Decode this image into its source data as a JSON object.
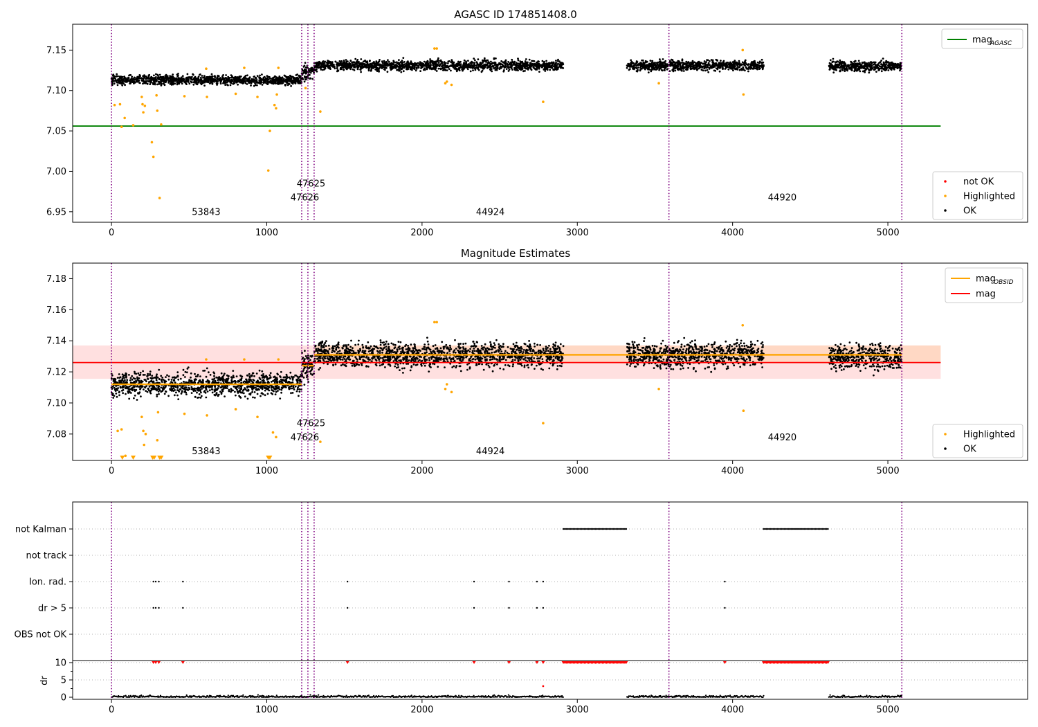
{
  "chart_data": [
    {
      "type": "scatter",
      "title": "AGASC ID 174851408.0",
      "xlim": [
        -250,
        5900
      ],
      "ylim": [
        6.937,
        7.182
      ],
      "xticks": [
        0,
        1000,
        2000,
        3000,
        4000,
        5000
      ],
      "yticks": [
        6.95,
        7.0,
        7.05,
        7.1,
        7.15
      ],
      "ytick_labels": [
        "6.95",
        "7.00",
        "7.05",
        "7.10",
        "7.15"
      ],
      "vlines": [
        0,
        1225,
        1265,
        1305,
        3590,
        5090
      ],
      "hlines": [
        {
          "y": 7.056,
          "x": [
            -250,
            5340
          ],
          "color": "#008000",
          "name": "mag",
          "sub": "AGASC"
        }
      ],
      "obsids": [
        {
          "label": "53843",
          "x": 610,
          "y": 6.946
        },
        {
          "label": "47625",
          "x": 1285,
          "y": 6.981
        },
        {
          "label": "47626",
          "x": 1245,
          "y": 6.964
        },
        {
          "label": "44924",
          "x": 2440,
          "y": 6.946
        },
        {
          "label": "44920",
          "x": 4320,
          "y": 6.964
        }
      ],
      "segments": [
        {
          "x": [
            0,
            1225
          ],
          "y": 7.113,
          "sd": 0.0045
        },
        {
          "x": [
            1225,
            1305
          ],
          "y": 7.122,
          "sd": 0.007
        },
        {
          "x": [
            1305,
            2910
          ],
          "y": 7.131,
          "sd": 0.005
        },
        {
          "x": [
            3320,
            4200
          ],
          "y": 7.131,
          "sd": 0.005
        },
        {
          "x": [
            4620,
            5090
          ],
          "y": 7.13,
          "sd": 0.005
        }
      ],
      "highlighted": [
        [
          20,
          7.082
        ],
        [
          55,
          7.083
        ],
        [
          65,
          7.055
        ],
        [
          85,
          7.066
        ],
        [
          140,
          7.057
        ],
        [
          195,
          7.092
        ],
        [
          200,
          7.083
        ],
        [
          215,
          7.081
        ],
        [
          205,
          7.073
        ],
        [
          260,
          7.036
        ],
        [
          270,
          7.018
        ],
        [
          290,
          7.094
        ],
        [
          295,
          7.075
        ],
        [
          310,
          6.967
        ],
        [
          320,
          7.058
        ],
        [
          470,
          7.093
        ],
        [
          610,
          7.127
        ],
        [
          615,
          7.092
        ],
        [
          800,
          7.096
        ],
        [
          855,
          7.128
        ],
        [
          940,
          7.092
        ],
        [
          1010,
          7.001
        ],
        [
          1020,
          7.05
        ],
        [
          1050,
          7.082
        ],
        [
          1060,
          7.078
        ],
        [
          1065,
          7.095
        ],
        [
          1075,
          7.128
        ],
        [
          1250,
          7.103
        ],
        [
          1345,
          7.074
        ],
        [
          2080,
          7.152
        ],
        [
          2095,
          7.152
        ],
        [
          2150,
          7.109
        ],
        [
          2160,
          7.111
        ],
        [
          2190,
          7.107
        ],
        [
          2780,
          7.086
        ],
        [
          3525,
          7.109
        ],
        [
          4065,
          7.15
        ],
        [
          4070,
          7.095
        ]
      ],
      "legend_right": [
        {
          "label": "mag",
          "sub": "AGASC",
          "color": "#008000",
          "kind": "line"
        }
      ],
      "legend_markers": [
        {
          "label": "not OK",
          "color": "#ff0000"
        },
        {
          "label": "Highlighted",
          "color": "#ffa500"
        },
        {
          "label": "OK",
          "color": "#000000"
        }
      ]
    },
    {
      "type": "scatter",
      "title": "Magnitude Estimates",
      "xlim": [
        -250,
        5900
      ],
      "ylim": [
        7.063,
        7.19
      ],
      "xticks": [
        0,
        1000,
        2000,
        3000,
        4000,
        5000
      ],
      "yticks": [
        7.08,
        7.1,
        7.12,
        7.14,
        7.16,
        7.18
      ],
      "ytick_labels": [
        "7.08",
        "7.10",
        "7.12",
        "7.14",
        "7.16",
        "7.18"
      ],
      "vlines": [
        0,
        1225,
        1265,
        1305,
        3590,
        5090
      ],
      "mag_band": {
        "y": 7.126,
        "lo": 7.1155,
        "hi": 7.137,
        "x": [
          -250,
          5340
        ]
      },
      "obsid_band": {
        "y": 7.131,
        "lo": 7.126,
        "hi": 7.137,
        "x": [
          1305,
          5340
        ]
      },
      "obsid_lines": [
        {
          "x": [
            0,
            1225
          ],
          "y": 7.112
        },
        {
          "x": [
            1225,
            1305
          ],
          "y": 7.124
        },
        {
          "x": [
            1305,
            5090
          ],
          "y": 7.131
        }
      ],
      "obsids": [
        {
          "label": "53843",
          "x": 610,
          "y": 7.067
        },
        {
          "label": "47625",
          "x": 1285,
          "y": 7.085
        },
        {
          "label": "47626",
          "x": 1245,
          "y": 7.076
        },
        {
          "label": "44924",
          "x": 2440,
          "y": 7.067
        },
        {
          "label": "44920",
          "x": 4320,
          "y": 7.076
        }
      ],
      "highlighted": [
        [
          40,
          7.082
        ],
        [
          65,
          7.083
        ],
        [
          90,
          7.066
        ],
        [
          195,
          7.091
        ],
        [
          205,
          7.082
        ],
        [
          220,
          7.08
        ],
        [
          210,
          7.073
        ],
        [
          295,
          7.076
        ],
        [
          300,
          7.094
        ],
        [
          470,
          7.093
        ],
        [
          610,
          7.128
        ],
        [
          615,
          7.092
        ],
        [
          800,
          7.096
        ],
        [
          855,
          7.128
        ],
        [
          940,
          7.091
        ],
        [
          1040,
          7.081
        ],
        [
          1060,
          7.078
        ],
        [
          1075,
          7.128
        ],
        [
          1345,
          7.075
        ],
        [
          2080,
          7.152
        ],
        [
          2095,
          7.152
        ],
        [
          2150,
          7.109
        ],
        [
          2160,
          7.112
        ],
        [
          2190,
          7.107
        ],
        [
          2780,
          7.087
        ],
        [
          3525,
          7.109
        ],
        [
          4065,
          7.15
        ],
        [
          4070,
          7.095
        ]
      ],
      "triangles": [
        70,
        140,
        265,
        275,
        310,
        320,
        1010,
        1020
      ],
      "legend_right": [
        {
          "label": "mag",
          "sub": "OBSID",
          "color": "#ffa500",
          "kind": "line"
        },
        {
          "label": "mag",
          "sub": "",
          "color": "#ff0000",
          "kind": "line"
        }
      ],
      "legend_markers": [
        {
          "label": "Highlighted",
          "color": "#ffa500"
        },
        {
          "label": "OK",
          "color": "#000000"
        }
      ]
    },
    {
      "type": "scatter",
      "title": "",
      "xlim": [
        -250,
        5900
      ],
      "xticks": [
        0,
        1000,
        2000,
        3000,
        4000,
        5000
      ],
      "flag_rows": [
        "not Kalman",
        "not track",
        "Ion. rad.",
        "dr > 5",
        "OBS not OK"
      ],
      "not_kalman_ranges": [
        [
          2910,
          3320
        ],
        [
          4200,
          4620
        ]
      ],
      "ion_rad_points": [
        270,
        285,
        305,
        460,
        1520,
        2335,
        2560,
        2740,
        2780,
        3950
      ],
      "dr_gt_5_points": [
        270,
        285,
        305,
        460,
        1520,
        2335,
        2560,
        2740,
        2780,
        3950
      ],
      "dr_yticks": [
        0,
        5,
        10
      ],
      "dr_ylabel": "dr",
      "vlines": [
        0,
        1225,
        1265,
        1305,
        3590,
        5090
      ]
    }
  ],
  "colors": {
    "ok": "#000000",
    "highlighted": "#ffa500",
    "not_ok": "#ff0000",
    "agasc": "#008000",
    "obsid": "#ffa500",
    "mag": "#ff0000",
    "vline": "#800080"
  }
}
